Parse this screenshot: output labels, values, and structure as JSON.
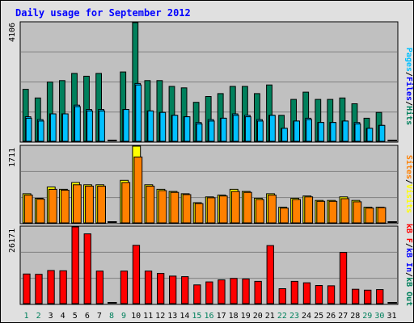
{
  "title": "Daily usage for September 2012",
  "colors": {
    "page_bg": "#E0E0E0",
    "plot_bg": "#C0C0C0",
    "grid": "#808080",
    "title": "#0000FF",
    "hits": "#00805C",
    "files": "#00C0FF",
    "pages": "#00C0FF",
    "visits": "#FFFF00",
    "sites": "#FF8000",
    "kb_out": "#00805C",
    "kb_in": "#0000FF",
    "kb_f": "#FF0000",
    "day_weekend": "#00805C",
    "day_weekday": "#000000"
  },
  "panels": {
    "top": {
      "ymax_label": "4106",
      "legend": [
        {
          "text": "Pages",
          "color": "#00C0FF"
        },
        {
          "text": "/",
          "color": "#000000"
        },
        {
          "text": "Files",
          "color": "#0000FF"
        },
        {
          "text": "/",
          "color": "#000000"
        },
        {
          "text": "Hits",
          "color": "#00805C"
        }
      ]
    },
    "middle": {
      "ymax_label": "1711",
      "legend": [
        {
          "text": "Sites",
          "color": "#FF8000"
        },
        {
          "text": "/",
          "color": "#000000"
        },
        {
          "text": "Visits",
          "color": "#FFFF00"
        }
      ]
    },
    "bottom": {
      "ymax_label": "26171",
      "legend": [
        {
          "text": "kB F",
          "color": "#FF0000"
        },
        {
          "text": "/",
          "color": "#000000"
        },
        {
          "text": "kB In",
          "color": "#0000FF"
        },
        {
          "text": "/",
          "color": "#000000"
        },
        {
          "text": "kB Out",
          "color": "#00805C"
        }
      ]
    }
  },
  "chart_data": {
    "type": "bar",
    "title": "Daily usage for September 2012",
    "categories": [
      "1",
      "2",
      "3",
      "4",
      "5",
      "6",
      "7",
      "8",
      "9",
      "10",
      "11",
      "12",
      "13",
      "14",
      "15",
      "16",
      "17",
      "18",
      "19",
      "20",
      "21",
      "22",
      "23",
      "24",
      "25",
      "26",
      "27",
      "28",
      "29",
      "30",
      "31"
    ],
    "weekend_days": [
      1,
      2,
      8,
      9,
      15,
      16,
      22,
      23,
      29,
      30
    ],
    "panels": [
      {
        "name": "top",
        "ylim": [
          0,
          4106
        ],
        "series": [
          {
            "name": "Hits",
            "values": [
              1800,
              1500,
              2050,
              2100,
              2350,
              2250,
              2350,
              0,
              2400,
              4106,
              2100,
              2100,
              1900,
              1850,
              1350,
              1550,
              1650,
              1900,
              1900,
              1650,
              1950,
              900,
              1450,
              1700,
              1450,
              1450,
              1500,
              1300,
              800,
              1000,
              0
            ]
          },
          {
            "name": "Files",
            "values": [
              850,
              750,
              950,
              950,
              1250,
              1100,
              1100,
              0,
              1100,
              2000,
              1050,
              1000,
              900,
              850,
              650,
              750,
              800,
              950,
              900,
              750,
              900,
              450,
              700,
              800,
              650,
              650,
              700,
              650,
              450,
              550,
              0
            ]
          },
          {
            "name": "Pages",
            "values": [
              800,
              700,
              950,
              950,
              1200,
              1050,
              1050,
              0,
              1100,
              1950,
              1050,
              1000,
              900,
              850,
              600,
              700,
              800,
              900,
              850,
              700,
              900,
              450,
              700,
              750,
              650,
              650,
              700,
              600,
              450,
              550,
              0
            ]
          }
        ]
      },
      {
        "name": "middle",
        "ylim": [
          0,
          1711
        ],
        "series": [
          {
            "name": "Visits",
            "values": [
              650,
              550,
              800,
              750,
              900,
              850,
              850,
              0,
              950,
              1711,
              850,
              750,
              700,
              650,
              450,
              580,
              620,
              750,
              700,
              550,
              650,
              350,
              550,
              600,
              500,
              500,
              580,
              500,
              350,
              350,
              0
            ]
          },
          {
            "name": "Sites",
            "values": [
              620,
              530,
              750,
              730,
              850,
              820,
              820,
              0,
              900,
              1470,
              820,
              720,
              680,
              630,
              430,
              560,
              600,
              700,
              680,
              520,
              620,
              330,
              520,
              580,
              480,
              480,
              540,
              470,
              330,
              340,
              0
            ]
          }
        ]
      },
      {
        "name": "bottom",
        "ylim": [
          0,
          26171
        ],
        "series": [
          {
            "name": "kB F",
            "values": [
              10100,
              10000,
              11300,
              11200,
              26171,
              23800,
              11100,
              0,
              11100,
              19900,
              11100,
              10300,
              9400,
              9200,
              6400,
              7400,
              8100,
              8600,
              8400,
              7600,
              19800,
              5100,
              7600,
              7100,
              6200,
              6100,
              17500,
              4900,
              4600,
              4800,
              0
            ]
          }
        ]
      }
    ]
  }
}
